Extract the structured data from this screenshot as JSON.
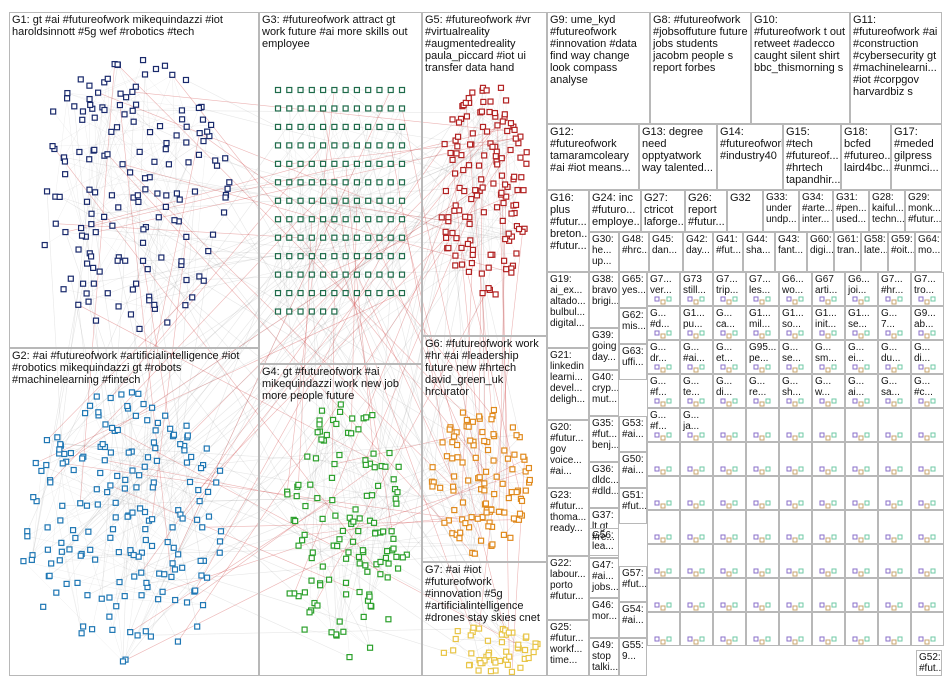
{
  "title": "",
  "groups": [
    {
      "id": "G1",
      "label": "G1: gt #ai #futureofwork mikequindazzi #iot haroldsinnott #5g wef #robotics #tech",
      "color": "#1a2a6c"
    },
    {
      "id": "G2",
      "label": "G2: #ai #futureofwork #artificialintelligence #iot #robotics mikequindazzi gt #robots #machinelearning #fintech",
      "color": "#1f77b4"
    },
    {
      "id": "G3",
      "label": "G3: #futureofwork attract gt work future #ai more skills out employee",
      "color": "#1e6b4a"
    },
    {
      "id": "G4",
      "label": "G4: gt #futureofwork #ai mikequindazzi work new job more people future",
      "color": "#2ca02c"
    },
    {
      "id": "G5",
      "label": "G5: #futureofwork #vr #virtualreality #augmentedreality paula_piccard #iot ui transfer data hand",
      "color": "#b22222"
    },
    {
      "id": "G6",
      "label": "G6: #futureofwork work #hr #ai #leadership future new #hrtech david_green_uk hrcurator",
      "color": "#e08a1e"
    },
    {
      "id": "G7",
      "label": "G7: #ai #iot #futureofwork #innovation #5g #artificialintelligence #drones stay skies cnet",
      "color": "#e8c547"
    },
    {
      "id": "G8",
      "label": "G8: #futureofwork #jobsoffuture future jobs students jacobm people s report forbes",
      "color": "#9acd32"
    },
    {
      "id": "G9",
      "label": "G9: ume_kyd #futureofwork #innovation #data find way change look compass analyse",
      "color": "#b05aa0"
    },
    {
      "id": "G10",
      "label": "G10: #futureofwork t out retweet #adecco caught silent shirt bbc_thismorning s",
      "color": "#7a5c3a"
    },
    {
      "id": "G11",
      "label": "G11: #futureofwork #ai #construction #cybersecurity gt #machinelearni... #iot #corpgov harvardbiz s",
      "color": "#c058c0"
    },
    {
      "id": "G12",
      "label": "G12: #futureofwork tamaramcoleary #ai #iot means...",
      "color": "#6a8caf"
    },
    {
      "id": "G13",
      "label": "G13: degree need opptyatwork way talented...",
      "color": "#7a7a7a"
    },
    {
      "id": "G14",
      "label": "G14: #futureofwork #industry40",
      "color": "#4a90d9"
    },
    {
      "id": "G15",
      "label": "G15: #tech #futureof... #hrtech tapandhir...",
      "color": "#666666"
    },
    {
      "id": "G18",
      "label": "G18: bcfed #futureo... laird4bc...",
      "color": "#8b4513"
    },
    {
      "id": "G17",
      "label": "G17: #meded gilpress #unmci...",
      "color": "#aa3377"
    },
    {
      "id": "G16",
      "label": "G16: plus #futur... breton... #futur...",
      "color": "#5555aa"
    },
    {
      "id": "G24",
      "label": "G24: inc #futuro... employe...",
      "color": "#339966"
    },
    {
      "id": "G27",
      "label": "G27: ctricot laforge...",
      "color": "#996633"
    },
    {
      "id": "G26",
      "label": "G26: report #futur...",
      "color": "#666699"
    },
    {
      "id": "G32",
      "label": "G32",
      "color": "#669933"
    },
    {
      "id": "G33",
      "label": "G33: under undp...",
      "color": "#993366"
    },
    {
      "id": "G34",
      "label": "G34: #arte... inter...",
      "color": "#336699"
    },
    {
      "id": "G31",
      "label": "G31: #pen... used...",
      "color": "#999933"
    },
    {
      "id": "G28",
      "label": "G28: kaiful... techn...",
      "color": "#cc6633"
    },
    {
      "id": "G29",
      "label": "G29: monk... #futur...",
      "color": "#6633cc"
    },
    {
      "id": "G30",
      "label": "G30: he... up...",
      "color": "#33aa88"
    },
    {
      "id": "G48",
      "label": "G48: #hrc...",
      "color": "#8844aa"
    },
    {
      "id": "G45",
      "label": "G45: dan...",
      "color": "#cc3366"
    },
    {
      "id": "G42",
      "label": "G42: day...",
      "color": "#44aa44"
    },
    {
      "id": "G41",
      "label": "G41: #fut...",
      "color": "#aa4444"
    },
    {
      "id": "G44",
      "label": "G44: sha...",
      "color": "#4444aa"
    },
    {
      "id": "G43",
      "label": "G43: fant...",
      "color": "#aaaa44"
    },
    {
      "id": "G60",
      "label": "G60: digi...",
      "color": "#44aaaa"
    },
    {
      "id": "G61",
      "label": "G61: tran...",
      "color": "#aa44aa"
    },
    {
      "id": "G58",
      "label": "G58: late...",
      "color": "#777733"
    },
    {
      "id": "G59",
      "label": "G59: #oit...",
      "color": "#337777"
    },
    {
      "id": "G64",
      "label": "G64: mo...",
      "color": "#773377"
    },
    {
      "id": "G19",
      "label": "G19: ai_ex... altado... bulbul... digital...",
      "color": "#2266aa"
    },
    {
      "id": "G38",
      "label": "G38: bravo brigi...",
      "color": "#aa6622"
    },
    {
      "id": "G39",
      "label": "G39: going day...",
      "color": "#22aa66"
    },
    {
      "id": "G21",
      "label": "G21: linkedin learni... devel... deligh...",
      "color": "#6622aa"
    },
    {
      "id": "G40",
      "label": "G40: cryp... mut...",
      "color": "#aa2266"
    },
    {
      "id": "G20",
      "label": "G20: #futur... gov voice... #ai...",
      "color": "#66aa22"
    },
    {
      "id": "G35",
      "label": "G35: #fut... benj...",
      "color": "#2288cc"
    },
    {
      "id": "G36",
      "label": "G36: dldc... #dld...",
      "color": "#cc8822"
    },
    {
      "id": "G23",
      "label": "G23: #futur... thoma... ready...",
      "color": "#22cc88"
    },
    {
      "id": "G37",
      "label": "G37: lt gt #re...",
      "color": "#8822cc"
    },
    {
      "id": "G22",
      "label": "G22: labour... porto #futur...",
      "color": "#cc2288"
    },
    {
      "id": "G25",
      "label": "G25: #futur... workf... time...",
      "color": "#88cc22"
    },
    {
      "id": "G56",
      "label": "G56: lea...",
      "color": "#3366cc"
    },
    {
      "id": "G47",
      "label": "G47: #ai... jobs...",
      "color": "#cc6633"
    },
    {
      "id": "G46",
      "label": "G46: mor...",
      "color": "#33cc66"
    },
    {
      "id": "G49",
      "label": "G49: stop talki...",
      "color": "#6633cc"
    },
    {
      "id": "G57",
      "label": "G57: #fut...",
      "color": "#cc3366"
    },
    {
      "id": "G54",
      "label": "G54: #ai...",
      "color": "#66cc33"
    },
    {
      "id": "G55",
      "label": "G55: 9...",
      "color": "#3366aa"
    },
    {
      "id": "G65",
      "label": "G65: yes...",
      "color": "#aa3366"
    },
    {
      "id": "G62",
      "label": "G62: mis...",
      "color": "#66aa33"
    },
    {
      "id": "G63",
      "label": "G63: uffi...",
      "color": "#3366cc"
    },
    {
      "id": "G53",
      "label": "G53: #ai...",
      "color": "#cc3333"
    },
    {
      "id": "G50",
      "label": "G50: #ai...",
      "color": "#33cccc"
    },
    {
      "id": "G51",
      "label": "G51: #fut...",
      "color": "#cc33cc"
    },
    {
      "id": "G52",
      "label": "G52: #fut...",
      "color": "#999999"
    }
  ],
  "small_group_labels": [
    "G7... ver...",
    "G73 still...",
    "G7... trip...",
    "G7... les...",
    "G6... wo...",
    "G67 arti...",
    "G6... joi...",
    "G7... #hr...",
    "G7... tro...",
    "G... #d...",
    "G1... pu...",
    "G... ca...",
    "G1... mil...",
    "G1... so...",
    "G1... init...",
    "G1... se...",
    "G... 7...",
    "G9... ab...",
    "G... dr...",
    "G... #ai...",
    "G... et...",
    "G95... pe...",
    "G... se...",
    "G... sm...",
    "G... ei...",
    "G... du...",
    "G... di...",
    "G... #f...",
    "G... te...",
    "G... di...",
    "G... re...",
    "G... sh...",
    "G... w...",
    "G... ai...",
    "G... sa...",
    "G... #c...",
    "G... #f...",
    "G... ja..."
  ],
  "nodes_note": ""
}
